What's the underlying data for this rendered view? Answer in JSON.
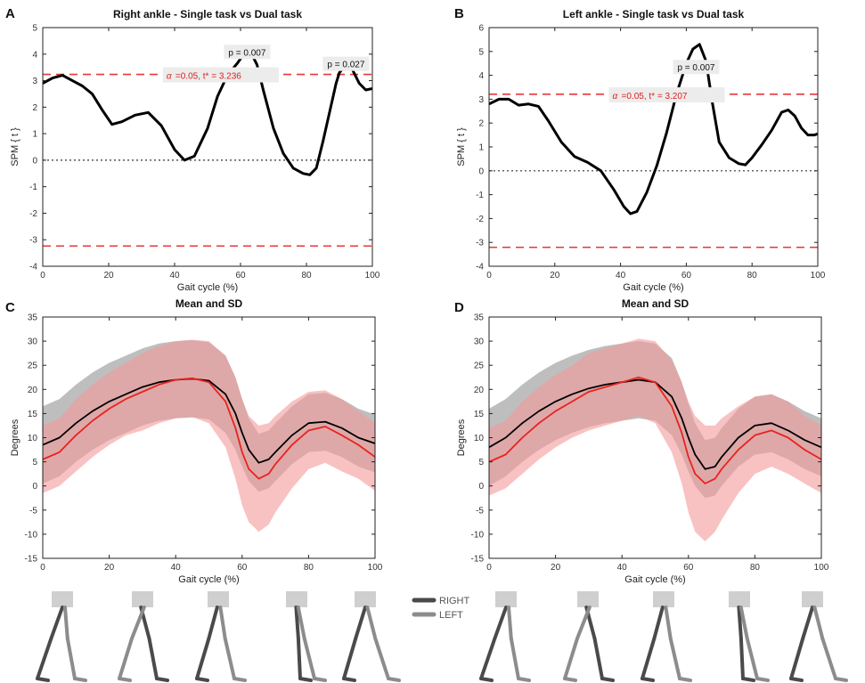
{
  "figure": {
    "legend": {
      "items": [
        {
          "label": "RIGHT",
          "color": "#4a4a4a"
        },
        {
          "label": "LEFT",
          "color": "#8c8c8c"
        }
      ]
    }
  },
  "chart_data": [
    {
      "panel_label": "A",
      "type": "line",
      "title": "Right ankle - Single task vs Dual task",
      "xlabel": "Gait cycle (%)",
      "ylabel": "SPM { t }",
      "xlim": [
        0,
        100
      ],
      "ylim": [
        -4,
        5
      ],
      "xticks": [
        0,
        20,
        40,
        60,
        80,
        100
      ],
      "yticks": [
        -4,
        -3,
        -2,
        -1,
        0,
        1,
        2,
        3,
        4,
        5
      ],
      "threshold": 3.236,
      "threshold_color": "#e8373a",
      "zero_line": true,
      "series": [
        {
          "color": "#000000",
          "x": [
            0,
            3,
            6,
            9,
            12,
            15,
            18,
            21,
            24,
            28,
            32,
            36,
            40,
            43,
            46,
            50,
            53,
            56,
            59,
            61,
            63,
            65,
            67,
            70,
            73,
            76,
            79,
            81,
            83,
            85,
            87,
            89,
            90,
            92,
            94,
            96,
            98,
            100
          ],
          "y": [
            2.9,
            3.1,
            3.2,
            3.0,
            2.8,
            2.5,
            1.9,
            1.35,
            1.45,
            1.7,
            1.8,
            1.3,
            0.4,
            0.0,
            0.15,
            1.2,
            2.4,
            3.2,
            3.65,
            4.0,
            4.1,
            3.6,
            2.6,
            1.2,
            0.25,
            -0.3,
            -0.5,
            -0.55,
            -0.3,
            0.7,
            1.8,
            2.9,
            3.3,
            3.6,
            3.4,
            2.9,
            2.65,
            2.7
          ]
        }
      ],
      "annotations": [
        {
          "text": "p = 0.007",
          "x": 62,
          "y": 3.95
        },
        {
          "text": "p = 0.027",
          "x": 92,
          "y": 3.5
        },
        {
          "alpha_symbol": "α",
          "text": "=0.05,     t* = 3.236",
          "x": 37,
          "y": 3.1
        }
      ]
    },
    {
      "panel_label": "B",
      "type": "line",
      "title": "Left ankle - Single task vs Dual task",
      "xlabel": "Gait cycle (%)",
      "ylabel": "SPM { t }",
      "xlim": [
        0,
        100
      ],
      "ylim": [
        -4,
        6
      ],
      "xticks": [
        0,
        20,
        40,
        60,
        80,
        100
      ],
      "yticks": [
        -4,
        -3,
        -2,
        -1,
        0,
        1,
        2,
        3,
        4,
        5,
        6
      ],
      "threshold": 3.207,
      "threshold_color": "#e8373a",
      "zero_line": true,
      "series": [
        {
          "color": "#000000",
          "x": [
            0,
            3,
            6,
            9,
            12,
            15,
            18,
            22,
            26,
            30,
            34,
            38,
            41,
            43,
            45,
            48,
            51,
            54,
            57,
            60,
            62,
            64,
            66,
            68,
            70,
            73,
            76,
            78,
            80,
            83,
            86,
            89,
            91,
            93,
            95,
            97,
            99,
            100
          ],
          "y": [
            2.8,
            3.0,
            3.0,
            2.75,
            2.8,
            2.7,
            2.1,
            1.2,
            0.6,
            0.35,
            0.0,
            -0.8,
            -1.5,
            -1.8,
            -1.7,
            -0.9,
            0.2,
            1.6,
            3.2,
            4.5,
            5.1,
            5.3,
            4.6,
            2.8,
            1.2,
            0.55,
            0.3,
            0.25,
            0.55,
            1.1,
            1.7,
            2.45,
            2.55,
            2.3,
            1.8,
            1.5,
            1.5,
            1.55
          ]
        }
      ],
      "annotations": [
        {
          "text": "p = 0.007",
          "x": 63,
          "y": 4.2
        },
        {
          "alpha_symbol": "α",
          "text": "=0.05,     t* = 3.207",
          "x": 37,
          "y": 3.05
        }
      ]
    },
    {
      "panel_label": "C",
      "type": "area",
      "title": "Mean and SD",
      "xlabel": "Gait cycle (%)",
      "ylabel": "Degrees",
      "xlim": [
        0,
        100
      ],
      "ylim": [
        -15,
        35
      ],
      "xticks": [
        0,
        20,
        40,
        60,
        80,
        100
      ],
      "yticks": [
        -15,
        -10,
        -5,
        0,
        5,
        10,
        15,
        20,
        25,
        30,
        35
      ],
      "series": [
        {
          "color": "#000000",
          "band_color": "#a8a8a8",
          "x": [
            0,
            5,
            10,
            15,
            20,
            25,
            30,
            35,
            40,
            45,
            50,
            55,
            58,
            60,
            62,
            65,
            68,
            70,
            75,
            80,
            85,
            90,
            95,
            100
          ],
          "y": [
            8.5,
            10,
            13,
            15.5,
            17.5,
            19,
            20.5,
            21.5,
            22,
            22.2,
            21.8,
            19,
            15,
            11,
            7.5,
            4.8,
            5.5,
            7,
            10.5,
            13,
            13.3,
            12,
            10,
            8.8
          ],
          "sd": [
            8,
            8,
            8,
            8,
            8,
            8,
            8,
            8,
            8,
            8,
            8,
            8,
            7.5,
            7,
            6.5,
            6,
            6,
            6,
            6,
            6,
            6,
            6,
            6,
            6
          ]
        },
        {
          "color": "#e8231f",
          "band_color": "#f49a9a",
          "x": [
            0,
            5,
            10,
            15,
            20,
            25,
            30,
            35,
            40,
            45,
            50,
            55,
            58,
            60,
            62,
            65,
            68,
            70,
            75,
            80,
            85,
            90,
            95,
            100
          ],
          "y": [
            5.5,
            7,
            10.5,
            13.5,
            16,
            18,
            19.5,
            21,
            22,
            22.3,
            21.5,
            17.5,
            12,
            7,
            3.5,
            1.5,
            2.5,
            4.5,
            8.5,
            11.5,
            12.3,
            10.5,
            8.5,
            6
          ],
          "sd": [
            7,
            7,
            7.5,
            7.5,
            7.5,
            7.5,
            8,
            8,
            8,
            8,
            8.5,
            9.5,
            10.5,
            11,
            11,
            11,
            10.5,
            10,
            9,
            8,
            7.5,
            7.5,
            7,
            7
          ]
        }
      ]
    },
    {
      "panel_label": "D",
      "type": "area",
      "title": "Mean and SD",
      "xlabel": "Gait cycle (%)",
      "ylabel": "Degrees",
      "xlim": [
        0,
        100
      ],
      "ylim": [
        -15,
        35
      ],
      "xticks": [
        0,
        20,
        40,
        60,
        80,
        100
      ],
      "yticks": [
        -15,
        -10,
        -5,
        0,
        5,
        10,
        15,
        20,
        25,
        30,
        35
      ],
      "series": [
        {
          "color": "#000000",
          "band_color": "#a8a8a8",
          "x": [
            0,
            5,
            10,
            15,
            20,
            25,
            30,
            35,
            40,
            45,
            50,
            55,
            58,
            60,
            62,
            65,
            68,
            70,
            75,
            80,
            85,
            90,
            95,
            100
          ],
          "y": [
            8,
            10,
            13,
            15.5,
            17.5,
            19,
            20.2,
            21,
            21.5,
            22,
            21.5,
            18.5,
            14,
            10,
            6.5,
            3.5,
            4,
            6,
            10,
            12.5,
            13,
            11.5,
            9.5,
            8
          ],
          "sd": [
            8,
            8,
            8,
            8,
            8,
            8,
            8,
            8,
            8,
            8,
            8,
            8,
            7.5,
            7,
            6.5,
            6,
            6,
            6,
            6,
            6,
            6,
            6,
            6,
            6
          ]
        },
        {
          "color": "#e8231f",
          "band_color": "#f49a9a",
          "x": [
            0,
            5,
            10,
            15,
            20,
            25,
            30,
            35,
            40,
            45,
            50,
            55,
            58,
            60,
            62,
            65,
            68,
            70,
            75,
            80,
            85,
            90,
            95,
            100
          ],
          "y": [
            5,
            6.5,
            10,
            13,
            15.5,
            17.5,
            19.5,
            20.5,
            21.5,
            22.5,
            21.5,
            16.5,
            11,
            6,
            2.5,
            0.5,
            1.5,
            3.5,
            7.5,
            10.5,
            11.5,
            10,
            7.5,
            5.5
          ],
          "sd": [
            7,
            7,
            7.5,
            7.5,
            7.5,
            7.5,
            8,
            8,
            8,
            8,
            8.5,
            9.5,
            10.5,
            11.5,
            12,
            12,
            11,
            10.5,
            9,
            8,
            7.5,
            7.5,
            7,
            7
          ]
        }
      ]
    }
  ]
}
